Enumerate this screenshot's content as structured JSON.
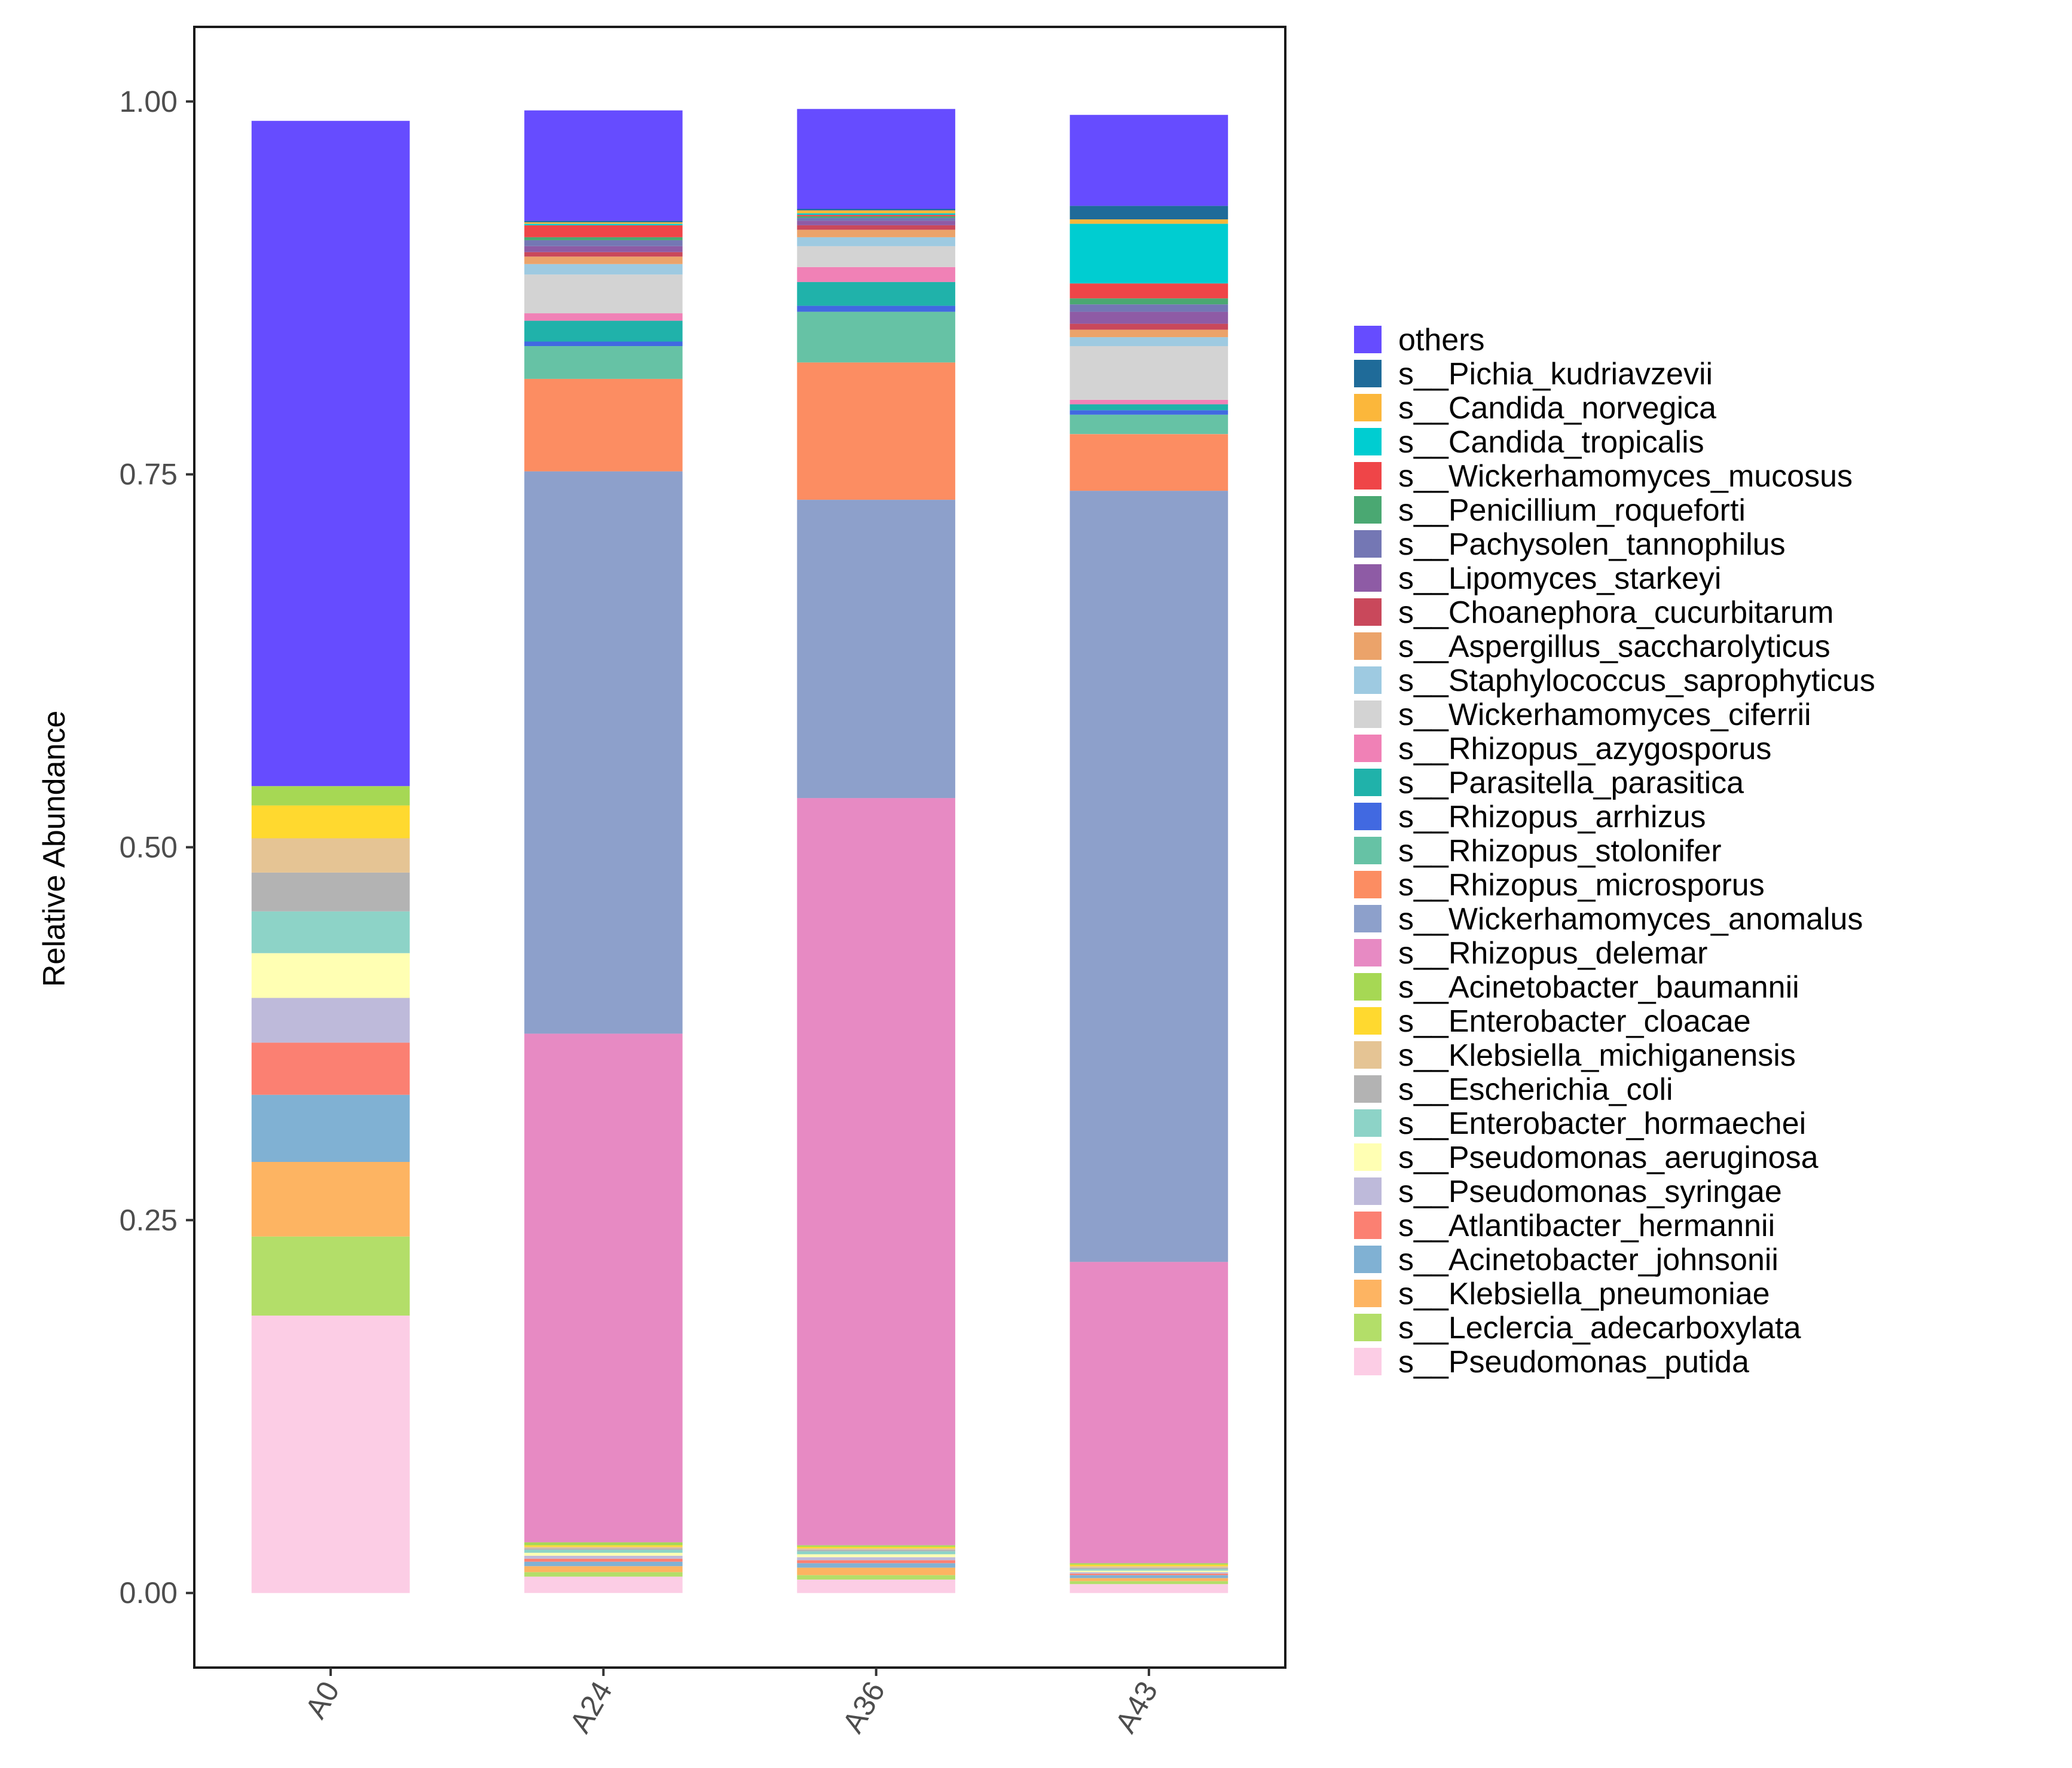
{
  "chart_data": {
    "type": "bar",
    "stacked": true,
    "title": "",
    "xlabel": "",
    "ylabel": "Relative Abundance",
    "ylim": [
      -0.05,
      1.05
    ],
    "yticks": [
      "0.00",
      "0.25",
      "0.50",
      "0.75",
      "1.00"
    ],
    "categories": [
      "A0",
      "A24",
      "A36",
      "A43"
    ],
    "legend_position": "right",
    "series": [
      {
        "name": "s__Pseudomonas_putida",
        "color": "#fccde5",
        "values": [
          0.186,
          0.011,
          0.009,
          0.006
        ]
      },
      {
        "name": "s__Leclercia_adecarboxylata",
        "color": "#b3de69",
        "values": [
          0.053,
          0.003,
          0.003,
          0.002
        ]
      },
      {
        "name": "s__Klebsiella_pneumoniae",
        "color": "#fdb462",
        "values": [
          0.05,
          0.004,
          0.005,
          0.002
        ]
      },
      {
        "name": "s__Acinetobacter_johnsonii",
        "color": "#80b1d3",
        "values": [
          0.045,
          0.003,
          0.003,
          0.002
        ]
      },
      {
        "name": "s__Atlantibacter_hermannii",
        "color": "#fb8072",
        "values": [
          0.035,
          0.002,
          0.002,
          0.001
        ]
      },
      {
        "name": "s__Pseudomonas_syringae",
        "color": "#bebada",
        "values": [
          0.03,
          0.002,
          0.002,
          0.001
        ]
      },
      {
        "name": "s__Pseudomonas_aeruginosa",
        "color": "#ffffb3",
        "values": [
          0.03,
          0.002,
          0.002,
          0.001
        ]
      },
      {
        "name": "s__Enterobacter_hormaechei",
        "color": "#8dd3c7",
        "values": [
          0.028,
          0.002,
          0.002,
          0.001
        ]
      },
      {
        "name": "s__Escherichia_coli",
        "color": "#b3b3b3",
        "values": [
          0.026,
          0.001,
          0.001,
          0.001
        ]
      },
      {
        "name": "s__Klebsiella_michiganensis",
        "color": "#e5c494",
        "values": [
          0.023,
          0.001,
          0.001,
          0.001
        ]
      },
      {
        "name": "s__Enterobacter_cloacae",
        "color": "#ffd92f",
        "values": [
          0.022,
          0.001,
          0.001,
          0.001
        ]
      },
      {
        "name": "s__Acinetobacter_baumannii",
        "color": "#a6d854",
        "values": [
          0.013,
          0.002,
          0.001,
          0.001
        ]
      },
      {
        "name": "s__Rhizopus_delemar",
        "color": "#e78ac3",
        "values": [
          0.0,
          0.341,
          0.501,
          0.202
        ]
      },
      {
        "name": "s__Wickerhamomyces_anomalus",
        "color": "#8da0cb",
        "values": [
          0.0,
          0.377,
          0.2,
          0.517
        ]
      },
      {
        "name": "s__Rhizopus_microsporus",
        "color": "#fc8d62",
        "values": [
          0.0,
          0.062,
          0.092,
          0.038
        ]
      },
      {
        "name": "s__Rhizopus_stolonifer",
        "color": "#66c2a5",
        "values": [
          0.0,
          0.022,
          0.034,
          0.013
        ]
      },
      {
        "name": "s__Rhizopus_arrhizus",
        "color": "#4169e1",
        "values": [
          0.0,
          0.003,
          0.004,
          0.003
        ]
      },
      {
        "name": "s__Parasitella_parasitica",
        "color": "#20b2aa",
        "values": [
          0.0,
          0.014,
          0.016,
          0.004
        ]
      },
      {
        "name": "s__Rhizopus_azygosporus",
        "color": "#f081b6",
        "values": [
          0.0,
          0.005,
          0.01,
          0.003
        ]
      },
      {
        "name": "s__Wickerhamomyces_ciferrii",
        "color": "#d3d3d3",
        "values": [
          0.0,
          0.026,
          0.014,
          0.036
        ]
      },
      {
        "name": "s__Staphylococcus_saprophyticus",
        "color": "#9ecae1",
        "values": [
          0.0,
          0.007,
          0.006,
          0.006
        ]
      },
      {
        "name": "s__Aspergillus_saccharolyticus",
        "color": "#eba36a",
        "values": [
          0.0,
          0.005,
          0.005,
          0.005
        ]
      },
      {
        "name": "s__Choanephora_cucurbitarum",
        "color": "#c9485b",
        "values": [
          0.0,
          0.003,
          0.003,
          0.004
        ]
      },
      {
        "name": "s__Lipomyces_starkeyi",
        "color": "#8e5ba5",
        "values": [
          0.0,
          0.004,
          0.003,
          0.008
        ]
      },
      {
        "name": "s__Pachysolen_tannophilus",
        "color": "#7477b4",
        "values": [
          0.0,
          0.004,
          0.002,
          0.005
        ]
      },
      {
        "name": "s__Penicillium_roqueforti",
        "color": "#4aa872",
        "values": [
          0.0,
          0.002,
          0.001,
          0.004
        ]
      },
      {
        "name": "s__Wickerhamomyces_mucosus",
        "color": "#ef4548",
        "values": [
          0.0,
          0.008,
          0.001,
          0.01
        ]
      },
      {
        "name": "s__Candida_tropicalis",
        "color": "#00cdd1",
        "values": [
          0.0,
          0.001,
          0.001,
          0.04
        ]
      },
      {
        "name": "s__Candida_norvegica",
        "color": "#fbb73b",
        "values": [
          0.0,
          0.001,
          0.002,
          0.003
        ]
      },
      {
        "name": "s__Pichia_kudriavzevii",
        "color": "#1f6b99",
        "values": [
          0.0,
          0.001,
          0.001,
          0.009
        ]
      },
      {
        "name": "others",
        "color": "#664cff",
        "values": [
          0.446,
          0.074,
          0.067,
          0.061
        ]
      }
    ]
  }
}
